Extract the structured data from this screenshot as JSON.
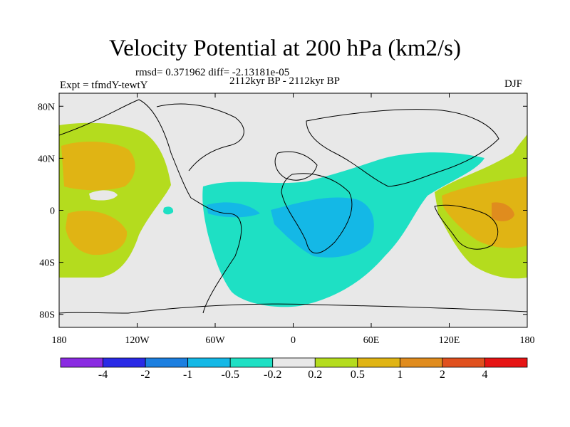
{
  "title": "Velocity Potential at 200 hPa (km2/s)",
  "stats": "rmsd= 0.371962 diff= -2.13181e-05",
  "experiment": "Expt = tfmdY-tewtY",
  "period": "2112kyr BP - 2112kyr BP",
  "season": "DJF",
  "lat_ticks": [
    "80N",
    "40N",
    "0",
    "40S",
    "80S"
  ],
  "lon_ticks": [
    "180",
    "120W",
    "60W",
    "0",
    "60E",
    "120E",
    "180"
  ],
  "colorbar": {
    "colors": [
      "#8a2be2",
      "#2a2ae6",
      "#1c7fe0",
      "#14b8e6",
      "#1ee0c4",
      "#e8e8e8",
      "#b4dc1e",
      "#e0b414",
      "#e08c1e",
      "#e0501e",
      "#e61414"
    ],
    "labels": [
      "-4",
      "-2",
      "-1",
      "-0.5",
      "-0.2",
      "0.2",
      "0.5",
      "1",
      "2",
      "4"
    ]
  },
  "chart_data": {
    "type": "contour-map",
    "variable": "Velocity Potential at 200 hPa",
    "units": "km2/s",
    "levels": [
      -4,
      -2,
      -1,
      -0.5,
      -0.2,
      0.2,
      0.5,
      1,
      2,
      4
    ],
    "lon_range": [
      -180,
      180
    ],
    "lat_range": [
      -90,
      90
    ],
    "regions": [
      {
        "name": "central-pacific-west-positive",
        "level_range": [
          0.2,
          1
        ]
      },
      {
        "name": "atlantic-africa-negative",
        "level_range": [
          -1,
          -0.2
        ]
      },
      {
        "name": "west-pacific-maritime-positive",
        "level_range": [
          0.2,
          2
        ]
      }
    ]
  }
}
